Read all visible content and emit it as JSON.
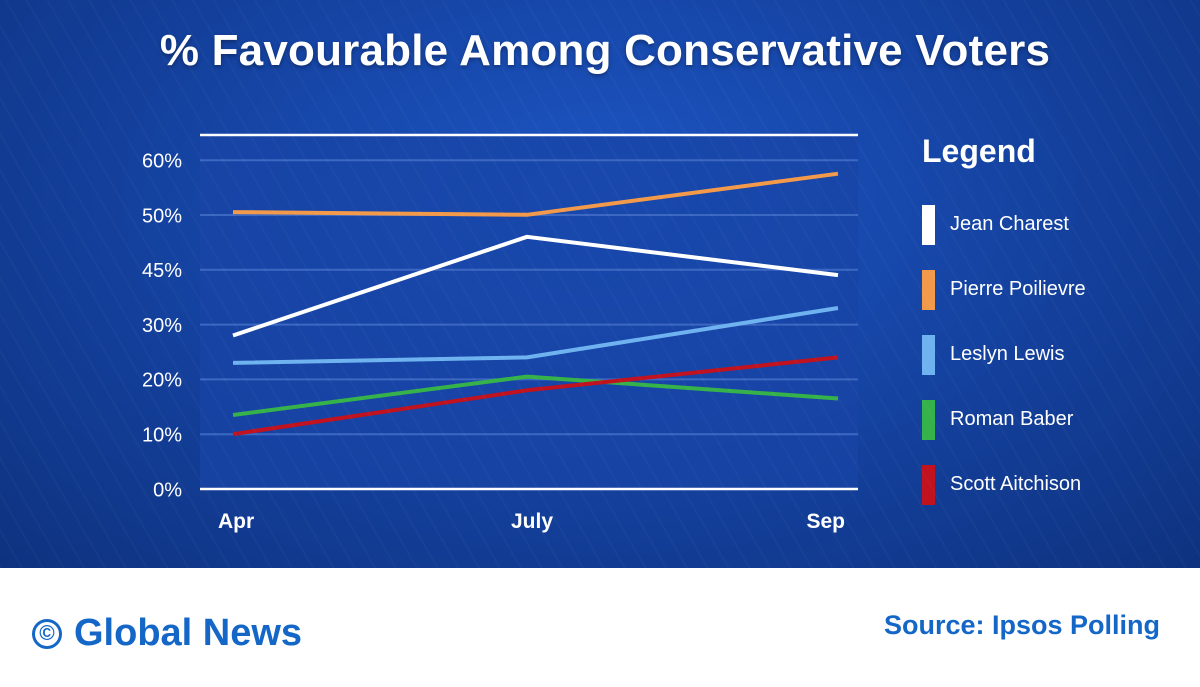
{
  "chart_data": {
    "type": "line",
    "title": "% Favourable Among Conservative Voters",
    "categories": [
      "Apr",
      "July",
      "Sep"
    ],
    "y_tick_labels": [
      "0%",
      "10%",
      "20%",
      "30%",
      "45%",
      "50%",
      "60%"
    ],
    "y_axis_note": "tick labels are not evenly spaced in value; gridlines are evenly spaced",
    "ylim": [
      0,
      60
    ],
    "grid": true,
    "legend_title": "Legend",
    "legend_position": "right",
    "series": [
      {
        "name": "Jean Charest",
        "color": "#ffffff",
        "values": [
          28,
          46,
          39
        ]
      },
      {
        "name": "Pierre Poilievre",
        "color": "#f39a4a",
        "values": [
          50.5,
          50,
          57.5
        ]
      },
      {
        "name": "Leslyn Lewis",
        "color": "#6fb2f0",
        "values": [
          23,
          24,
          33
        ]
      },
      {
        "name": "Roman Baber",
        "color": "#36b24a",
        "values": [
          13.5,
          20.5,
          16.5
        ]
      },
      {
        "name": "Scott Aitchison",
        "color": "#c1121f",
        "values": [
          10,
          18,
          24
        ]
      }
    ]
  },
  "footer": {
    "brand_name": "Global News",
    "copyright_symbol": "©",
    "source": "Source: Ipsos Polling"
  }
}
